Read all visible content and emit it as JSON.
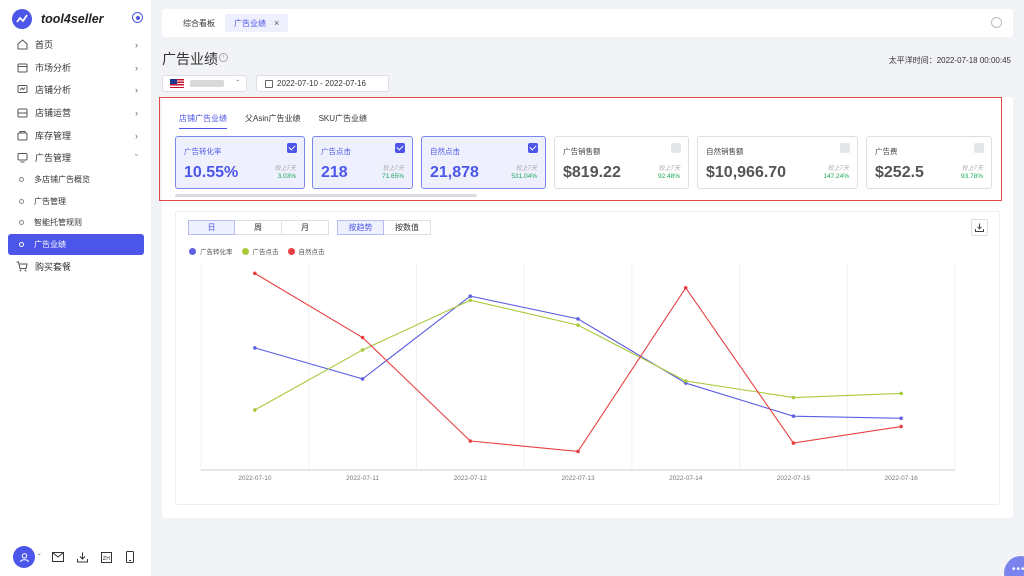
{
  "app": {
    "name": "tool4seller"
  },
  "sidebar": {
    "items": [
      {
        "label": "首页",
        "icon": "home-icon"
      },
      {
        "label": "市场分析",
        "icon": "market-icon"
      },
      {
        "label": "店铺分析",
        "icon": "chart-icon"
      },
      {
        "label": "店铺运营",
        "icon": "store-icon"
      },
      {
        "label": "库存管理",
        "icon": "box-icon"
      },
      {
        "label": "广告管理",
        "icon": "monitor-icon"
      }
    ],
    "sub_items": [
      "多店铺广告概览",
      "广告管理",
      "智能托管规则",
      "广告业绩"
    ],
    "buy": {
      "label": "购买套餐",
      "icon": "cart-icon"
    }
  },
  "tabs": {
    "home": "综合看板",
    "current": "广告业绩"
  },
  "page": {
    "title": "广告业绩",
    "timezone": "太平洋时间：2022-07-18 00:00:45",
    "date_range": "2022-07-10 - 2022-07-16"
  },
  "subtabs": [
    "店铺广告业绩",
    "父Asin广告业绩",
    "SKU广告业绩"
  ],
  "metrics": [
    {
      "label": "广告转化率",
      "value": "10.55%",
      "cmp_label": "较上7天",
      "cmp_value": "3.03%",
      "selected": true
    },
    {
      "label": "广告点击",
      "value": "218",
      "cmp_label": "较上7天",
      "cmp_value": "71.65%",
      "selected": true
    },
    {
      "label": "自然点击",
      "value": "21,878",
      "cmp_label": "较上7天",
      "cmp_value": "531.04%",
      "selected": true
    },
    {
      "label": "广告销售额",
      "value": "$819.22",
      "cmp_label": "较上7天",
      "cmp_value": "92.48%",
      "selected": false
    },
    {
      "label": "自然销售额",
      "value": "$10,966.70",
      "cmp_label": "较上7天",
      "cmp_value": "147.24%",
      "selected": false
    },
    {
      "label": "广告费",
      "value": "$252.5",
      "cmp_label": "较上7天",
      "cmp_value": "93.78%",
      "selected": false
    }
  ],
  "controls": {
    "period": [
      "日",
      "周",
      "月"
    ],
    "mode": [
      "按趋势",
      "按数值"
    ]
  },
  "chart_data": {
    "type": "line",
    "x": [
      "2022-07-10",
      "2022-07-11",
      "2022-07-12",
      "2022-07-13",
      "2022-07-14",
      "2022-07-15",
      "2022-07-16"
    ],
    "series": [
      {
        "name": "广告转化率",
        "color": "#5b5fe0",
        "values": [
          0.59,
          0.44,
          0.84,
          0.73,
          0.42,
          0.26,
          0.25
        ]
      },
      {
        "name": "广告点击",
        "color": "#a8c93c",
        "values": [
          0.29,
          0.58,
          0.82,
          0.7,
          0.43,
          0.35,
          0.37
        ]
      },
      {
        "name": "自然点击",
        "color": "#e84040",
        "values": [
          0.95,
          0.64,
          0.14,
          0.09,
          0.88,
          0.13,
          0.21
        ]
      }
    ],
    "grid": "vertical"
  }
}
